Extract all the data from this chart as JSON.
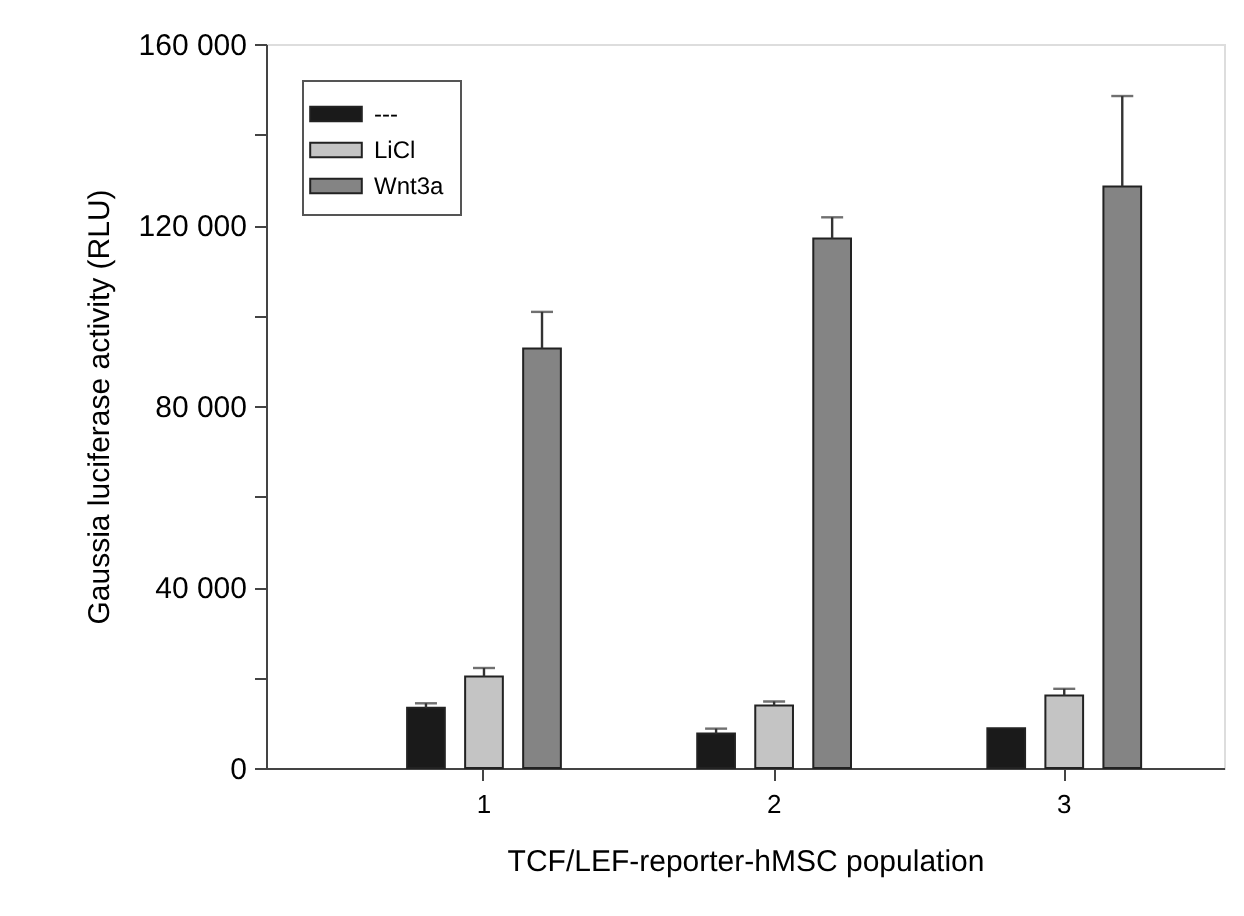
{
  "chart_data": {
    "type": "bar",
    "xlabel": "TCF/LEF-reporter-hMSC population",
    "ylabel": "Gaussia luciferase activity (RLU)",
    "categories": [
      "1",
      "2",
      "3"
    ],
    "series": [
      {
        "name": "---",
        "color": "#1a1a1a",
        "values": [
          13300,
          7600,
          8800
        ],
        "errors": [
          [
            13300,
            14300
          ],
          [
            7600,
            8700
          ],
          null
        ]
      },
      {
        "name": "LiCl",
        "color": "#c4c4c4",
        "values": [
          20200,
          13800,
          16000
        ],
        "errors": [
          [
            20200,
            22100
          ],
          [
            13800,
            14700
          ],
          [
            16000,
            17500
          ]
        ]
      },
      {
        "name": "Wnt3a",
        "color": "#848484",
        "values": [
          92700,
          117000,
          128500
        ],
        "errors": [
          [
            92700,
            100800
          ],
          [
            117000,
            121700
          ],
          [
            128500,
            148500
          ]
        ]
      }
    ],
    "ylim": [
      0,
      160000
    ],
    "yticks": [
      {
        "value": 0,
        "label": "0"
      },
      {
        "value": 20000,
        "label": null
      },
      {
        "value": 40000,
        "label": "40 000"
      },
      {
        "value": 60000,
        "label": null
      },
      {
        "value": 80000,
        "label": "80 000"
      },
      {
        "value": 100000,
        "label": null
      },
      {
        "value": 120000,
        "label": "120 000"
      },
      {
        "value": 140000,
        "label": null
      },
      {
        "value": 160000,
        "label": "160 000"
      }
    ],
    "legend": "top left"
  }
}
